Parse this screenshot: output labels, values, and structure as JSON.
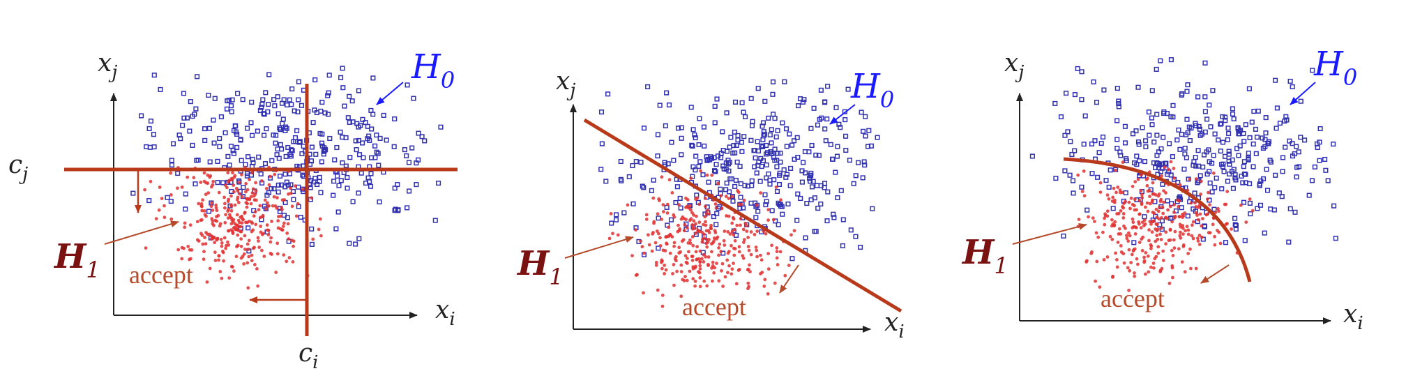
{
  "colors": {
    "h0": "#1a1aff",
    "h1": "#7a1212",
    "cut": "#b83a1a",
    "accept": "#b44a2a",
    "axis": "#222222",
    "background_points": "#3030b0",
    "signal_points": "#e03030"
  },
  "panels": [
    {
      "kind": "rectangular-cuts",
      "x_axis": {
        "var": "x",
        "sub": "i"
      },
      "y_axis": {
        "var": "x",
        "sub": "j"
      },
      "h0": {
        "main": "H",
        "sub": "0"
      },
      "h1": {
        "main": "H",
        "sub": "1"
      },
      "accept": "accept",
      "cut_x": {
        "var": "c",
        "sub": "i"
      },
      "cut_y": {
        "var": "c",
        "sub": "j"
      }
    },
    {
      "kind": "linear",
      "x_axis": {
        "var": "x",
        "sub": "i"
      },
      "y_axis": {
        "var": "x",
        "sub": "j"
      },
      "h0": {
        "main": "H",
        "sub": "0"
      },
      "h1": {
        "main": "H",
        "sub": "1"
      },
      "accept": "accept"
    },
    {
      "kind": "nonlinear",
      "x_axis": {
        "var": "x",
        "sub": "i"
      },
      "y_axis": {
        "var": "x",
        "sub": "j"
      },
      "h0": {
        "main": "H",
        "sub": "0"
      },
      "h1": {
        "main": "H",
        "sub": "1"
      },
      "accept": "accept"
    }
  ]
}
